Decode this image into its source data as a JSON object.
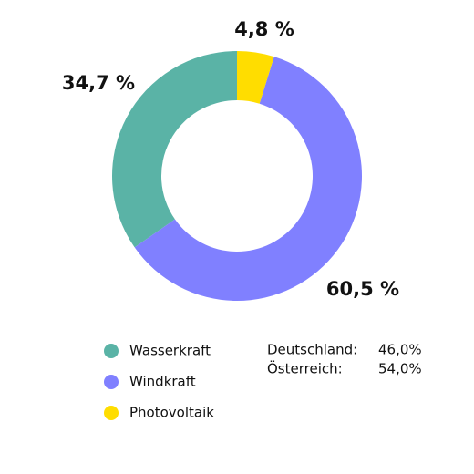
{
  "chart_data": {
    "type": "donut",
    "categories": [
      "Wasserkraft",
      "Windkraft",
      "Photovoltaik"
    ],
    "values": [
      34.7,
      60.5,
      4.8
    ],
    "value_labels": [
      "34,7 %",
      "60,5 %",
      "4,8 %"
    ],
    "colors": [
      "#5ab3a6",
      "#8080ff",
      "#ffdd00"
    ],
    "legend": "bottom-left"
  },
  "side_table": {
    "rows": [
      [
        "Deutschland:",
        "46,0%"
      ],
      [
        "Österreich:",
        "54,0%"
      ]
    ]
  }
}
